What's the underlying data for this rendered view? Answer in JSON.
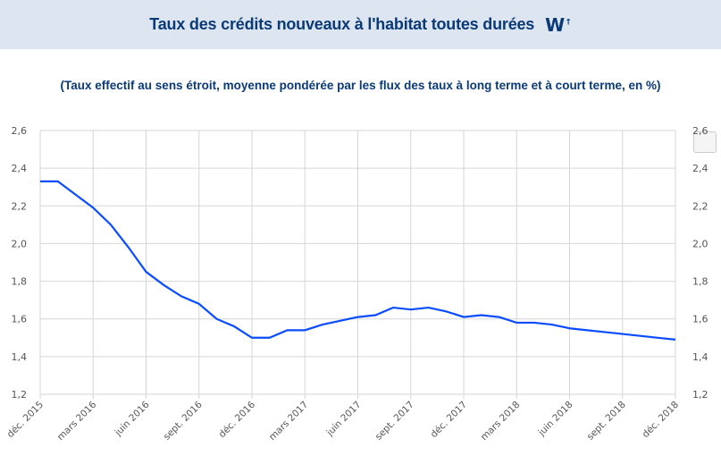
{
  "header": {
    "title": "Taux des crédits nouveaux à l'habitat toutes durées",
    "logo": "W"
  },
  "chart_data": {
    "type": "line",
    "title": "Taux des crédits nouveaux à l'habitat toutes durées",
    "subtitle": "(Taux effectif au sens étroit, moyenne pondérée par les flux des taux à long terme et à court terme, en %)",
    "xlabel": "",
    "ylabel": "",
    "ylim": [
      1.2,
      2.6
    ],
    "yticks": [
      "1,2",
      "1,4",
      "1,6",
      "1,8",
      "2,0",
      "2,2",
      "2,4",
      "2,6"
    ],
    "xticks": [
      "déc. 2015",
      "mars 2016",
      "juin 2016",
      "sept. 2016",
      "déc. 2016",
      "mars 2017",
      "juin 2017",
      "sept. 2017",
      "déc. 2017",
      "mars 2018",
      "juin 2018",
      "sept. 2018",
      "déc. 2018"
    ],
    "grid": true,
    "color": "#0a4cff",
    "x": [
      "2015-12",
      "2016-01",
      "2016-02",
      "2016-03",
      "2016-04",
      "2016-05",
      "2016-06",
      "2016-07",
      "2016-08",
      "2016-09",
      "2016-10",
      "2016-11",
      "2016-12",
      "2017-01",
      "2017-02",
      "2017-03",
      "2017-04",
      "2017-05",
      "2017-06",
      "2017-07",
      "2017-08",
      "2017-09",
      "2017-10",
      "2017-11",
      "2017-12",
      "2018-01",
      "2018-02",
      "2018-03",
      "2018-04",
      "2018-05",
      "2018-06",
      "2018-07",
      "2018-08",
      "2018-09",
      "2018-10",
      "2018-11",
      "2018-12"
    ],
    "values": [
      2.33,
      2.33,
      2.26,
      2.19,
      2.1,
      1.98,
      1.85,
      1.78,
      1.72,
      1.68,
      1.6,
      1.56,
      1.5,
      1.5,
      1.54,
      1.54,
      1.57,
      1.59,
      1.61,
      1.62,
      1.66,
      1.65,
      1.66,
      1.64,
      1.61,
      1.62,
      1.61,
      1.58,
      1.58,
      1.57,
      1.55,
      1.54,
      1.53,
      1.52,
      1.51,
      1.5,
      1.49
    ]
  }
}
